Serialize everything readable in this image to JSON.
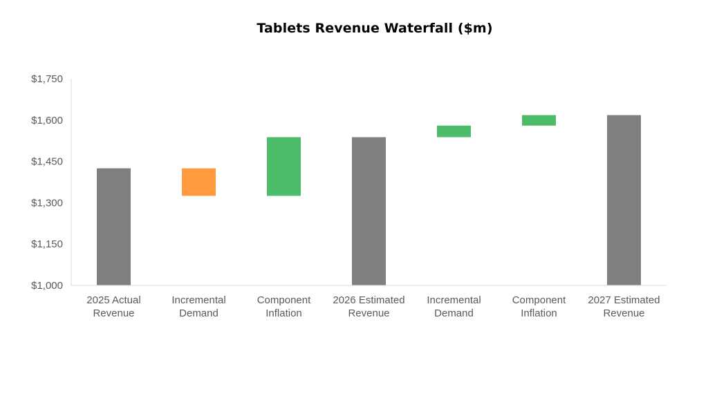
{
  "chart_data": {
    "type": "bar",
    "subtype": "waterfall",
    "title": "Tablets Revenue Waterfall ($m)",
    "xlabel": "",
    "ylabel": "",
    "ylim": [
      1000,
      1750
    ],
    "yticks": [
      "$1,000",
      "$1,150",
      "$1,300",
      "$1,450",
      "$1,600",
      "$1,750"
    ],
    "ytick_values": [
      1000,
      1150,
      1300,
      1450,
      1600,
      1750
    ],
    "grid": false,
    "legend": "none",
    "categories": [
      [
        "2025 Actual",
        "Revenue"
      ],
      [
        "Incremental",
        "Demand"
      ],
      [
        "Component",
        "Inflation"
      ],
      [
        "2026 Estimated",
        "Revenue"
      ],
      [
        "Incremental",
        "Demand"
      ],
      [
        "Component",
        "Inflation"
      ],
      [
        "2027 Estimated",
        "Revenue"
      ]
    ],
    "bars": [
      {
        "kind": "total",
        "start": 1000,
        "end": 1425,
        "color": "#7f7f7f"
      },
      {
        "kind": "decrease",
        "start": 1425,
        "end": 1325,
        "color": "#ff9a3e"
      },
      {
        "kind": "increase",
        "start": 1325,
        "end": 1538,
        "color": "#4cbb6a"
      },
      {
        "kind": "total",
        "start": 1000,
        "end": 1538,
        "color": "#7f7f7f"
      },
      {
        "kind": "increase",
        "start": 1538,
        "end": 1580,
        "color": "#4cbb6a"
      },
      {
        "kind": "increase",
        "start": 1580,
        "end": 1618,
        "color": "#4cbb6a"
      },
      {
        "kind": "total",
        "start": 1000,
        "end": 1618,
        "color": "#7f7f7f"
      }
    ],
    "axis_color": "#d9d9d9"
  }
}
